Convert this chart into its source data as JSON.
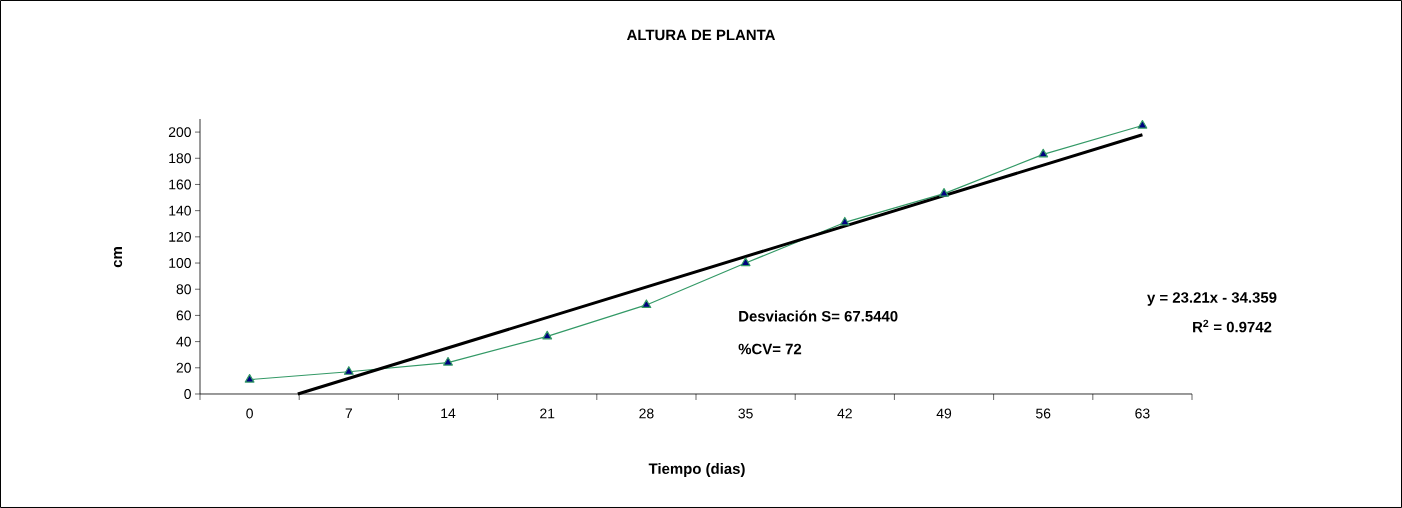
{
  "chart_data": {
    "type": "line",
    "title": "ALTURA DE PLANTA",
    "xlabel": "Tiempo (dias)",
    "ylabel": "cm",
    "xlim": [
      -3.5,
      66.5
    ],
    "xticks": [
      {
        "value": -3.5,
        "label": null
      },
      0,
      {
        "value": 3.5,
        "label": null
      },
      7,
      {
        "value": 10.5,
        "label": null
      },
      14,
      {
        "value": 17.5,
        "label": null
      },
      21,
      {
        "value": 24.5,
        "label": null
      },
      28,
      {
        "value": 31.5,
        "label": null
      },
      35,
      {
        "value": 38.5,
        "label": null
      },
      42,
      {
        "value": 45.5,
        "label": null
      },
      49,
      {
        "value": 52.5,
        "label": null
      },
      56,
      {
        "value": 59.5,
        "label": null
      },
      63,
      {
        "value": 66.5,
        "label": null
      }
    ],
    "ylim": [
      0,
      210
    ],
    "yticks": [
      0,
      20,
      40,
      60,
      80,
      100,
      120,
      140,
      160,
      180,
      200
    ],
    "marker": "triangle",
    "series": [
      {
        "color": "#339966",
        "x": [
          0,
          7,
          14,
          21,
          28,
          35,
          42,
          49,
          56,
          63
        ],
        "values": [
          11,
          17,
          24,
          44,
          68,
          100,
          131,
          153,
          183,
          205
        ]
      },
      {
        "type": "line",
        "color": "#000000",
        "marker": "none",
        "x": [
          3.4,
          63
        ],
        "values": [
          0,
          198
        ]
      }
    ],
    "annotations": [
      "Desviación S=  67.5440",
      "%CV= 72",
      "y = 23.21x - 34.359",
      "R$^{2}$ = 0.9742"
    ]
  }
}
